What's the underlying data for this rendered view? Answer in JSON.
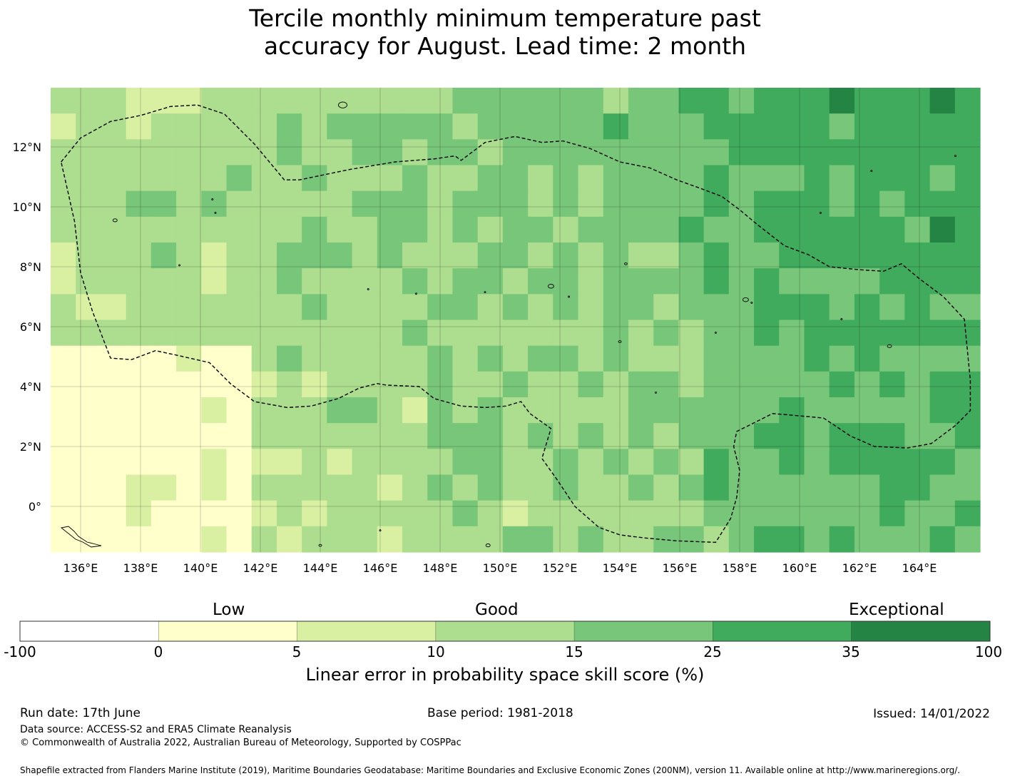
{
  "title": {
    "line1": "Tercile monthly minimum temperature past",
    "line2": "accuracy for August. Lead time: 2 month"
  },
  "map": {
    "lon_labels": [
      "136°E",
      "138°E",
      "140°E",
      "142°E",
      "144°E",
      "146°E",
      "148°E",
      "150°E",
      "152°E",
      "154°E",
      "156°E",
      "158°E",
      "160°E",
      "162°E",
      "164°E"
    ],
    "lat_labels": [
      "12°N",
      "10°N",
      "8°N",
      "6°N",
      "4°N",
      "2°N",
      "0°"
    ],
    "lon_range": [
      135.0,
      166.0
    ],
    "lat_range": [
      -1.5,
      14.0
    ],
    "grid_cell_deg": 0.8333,
    "grid_cols": 37,
    "grid_rows": 18
  },
  "legend": {
    "low": "Low",
    "good": "Good",
    "exceptional": "Exceptional",
    "ticks": [
      "-100",
      "0",
      "5",
      "10",
      "15",
      "25",
      "35",
      "100"
    ],
    "colors": [
      "#ffffff",
      "#ffffcc",
      "#d9f0a3",
      "#addd8e",
      "#78c679",
      "#41ab5d",
      "#238443"
    ],
    "title": "Linear error in probability space skill score (%)"
  },
  "footer": {
    "run_date": "Run date: 17th June",
    "base_period": "Base period: 1981-2018",
    "issued": "Issued: 14/01/2022",
    "data_source": "Data source: ACCESS-S2 and ERA5 Climate Reanalysis",
    "copyright": "© Commonwealth of Australia 2022, Australian Bureau of Meteorology, Supported by COSPPac",
    "shapefile": "Shapefile extracted from Flanders Marine Institute (2019), Maritime Boundaries Geodatabase: Maritime Boundaries and Exclusive Economic Zones (200NM), version 11. Available online at http://www.marineregions.org/."
  }
}
